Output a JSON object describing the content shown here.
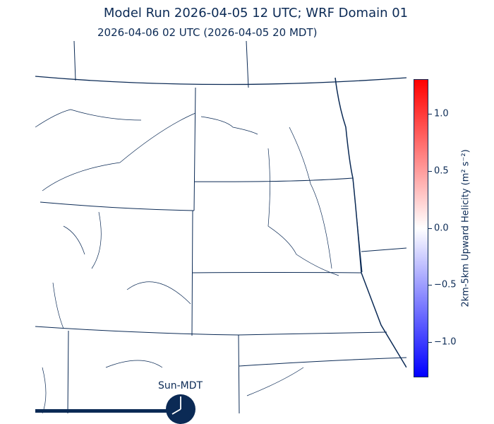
{
  "title": "Model Run 2026-04-05 12 UTC; WRF Domain 01",
  "subtitle": "2026-04-06 02 UTC  (2026-04-05 20 MDT)",
  "colorbar": {
    "label": "2km-5km Upward Helicity (m² s⁻²)",
    "range": [
      -1.3,
      1.3
    ],
    "colormap": "bwr",
    "ticks": [
      "1.0",
      "0.5",
      "0.0",
      "−0.5",
      "−1.0"
    ],
    "tick_values": [
      1.0,
      0.5,
      0.0,
      -0.5,
      -1.0
    ]
  },
  "clock": {
    "label": "Sun-MDT",
    "time": "20:00",
    "progress": 0.4
  },
  "colors": {
    "text": "#0b2a55",
    "max": "#ff0000",
    "zero": "#ffffff",
    "min": "#0000ff"
  }
}
